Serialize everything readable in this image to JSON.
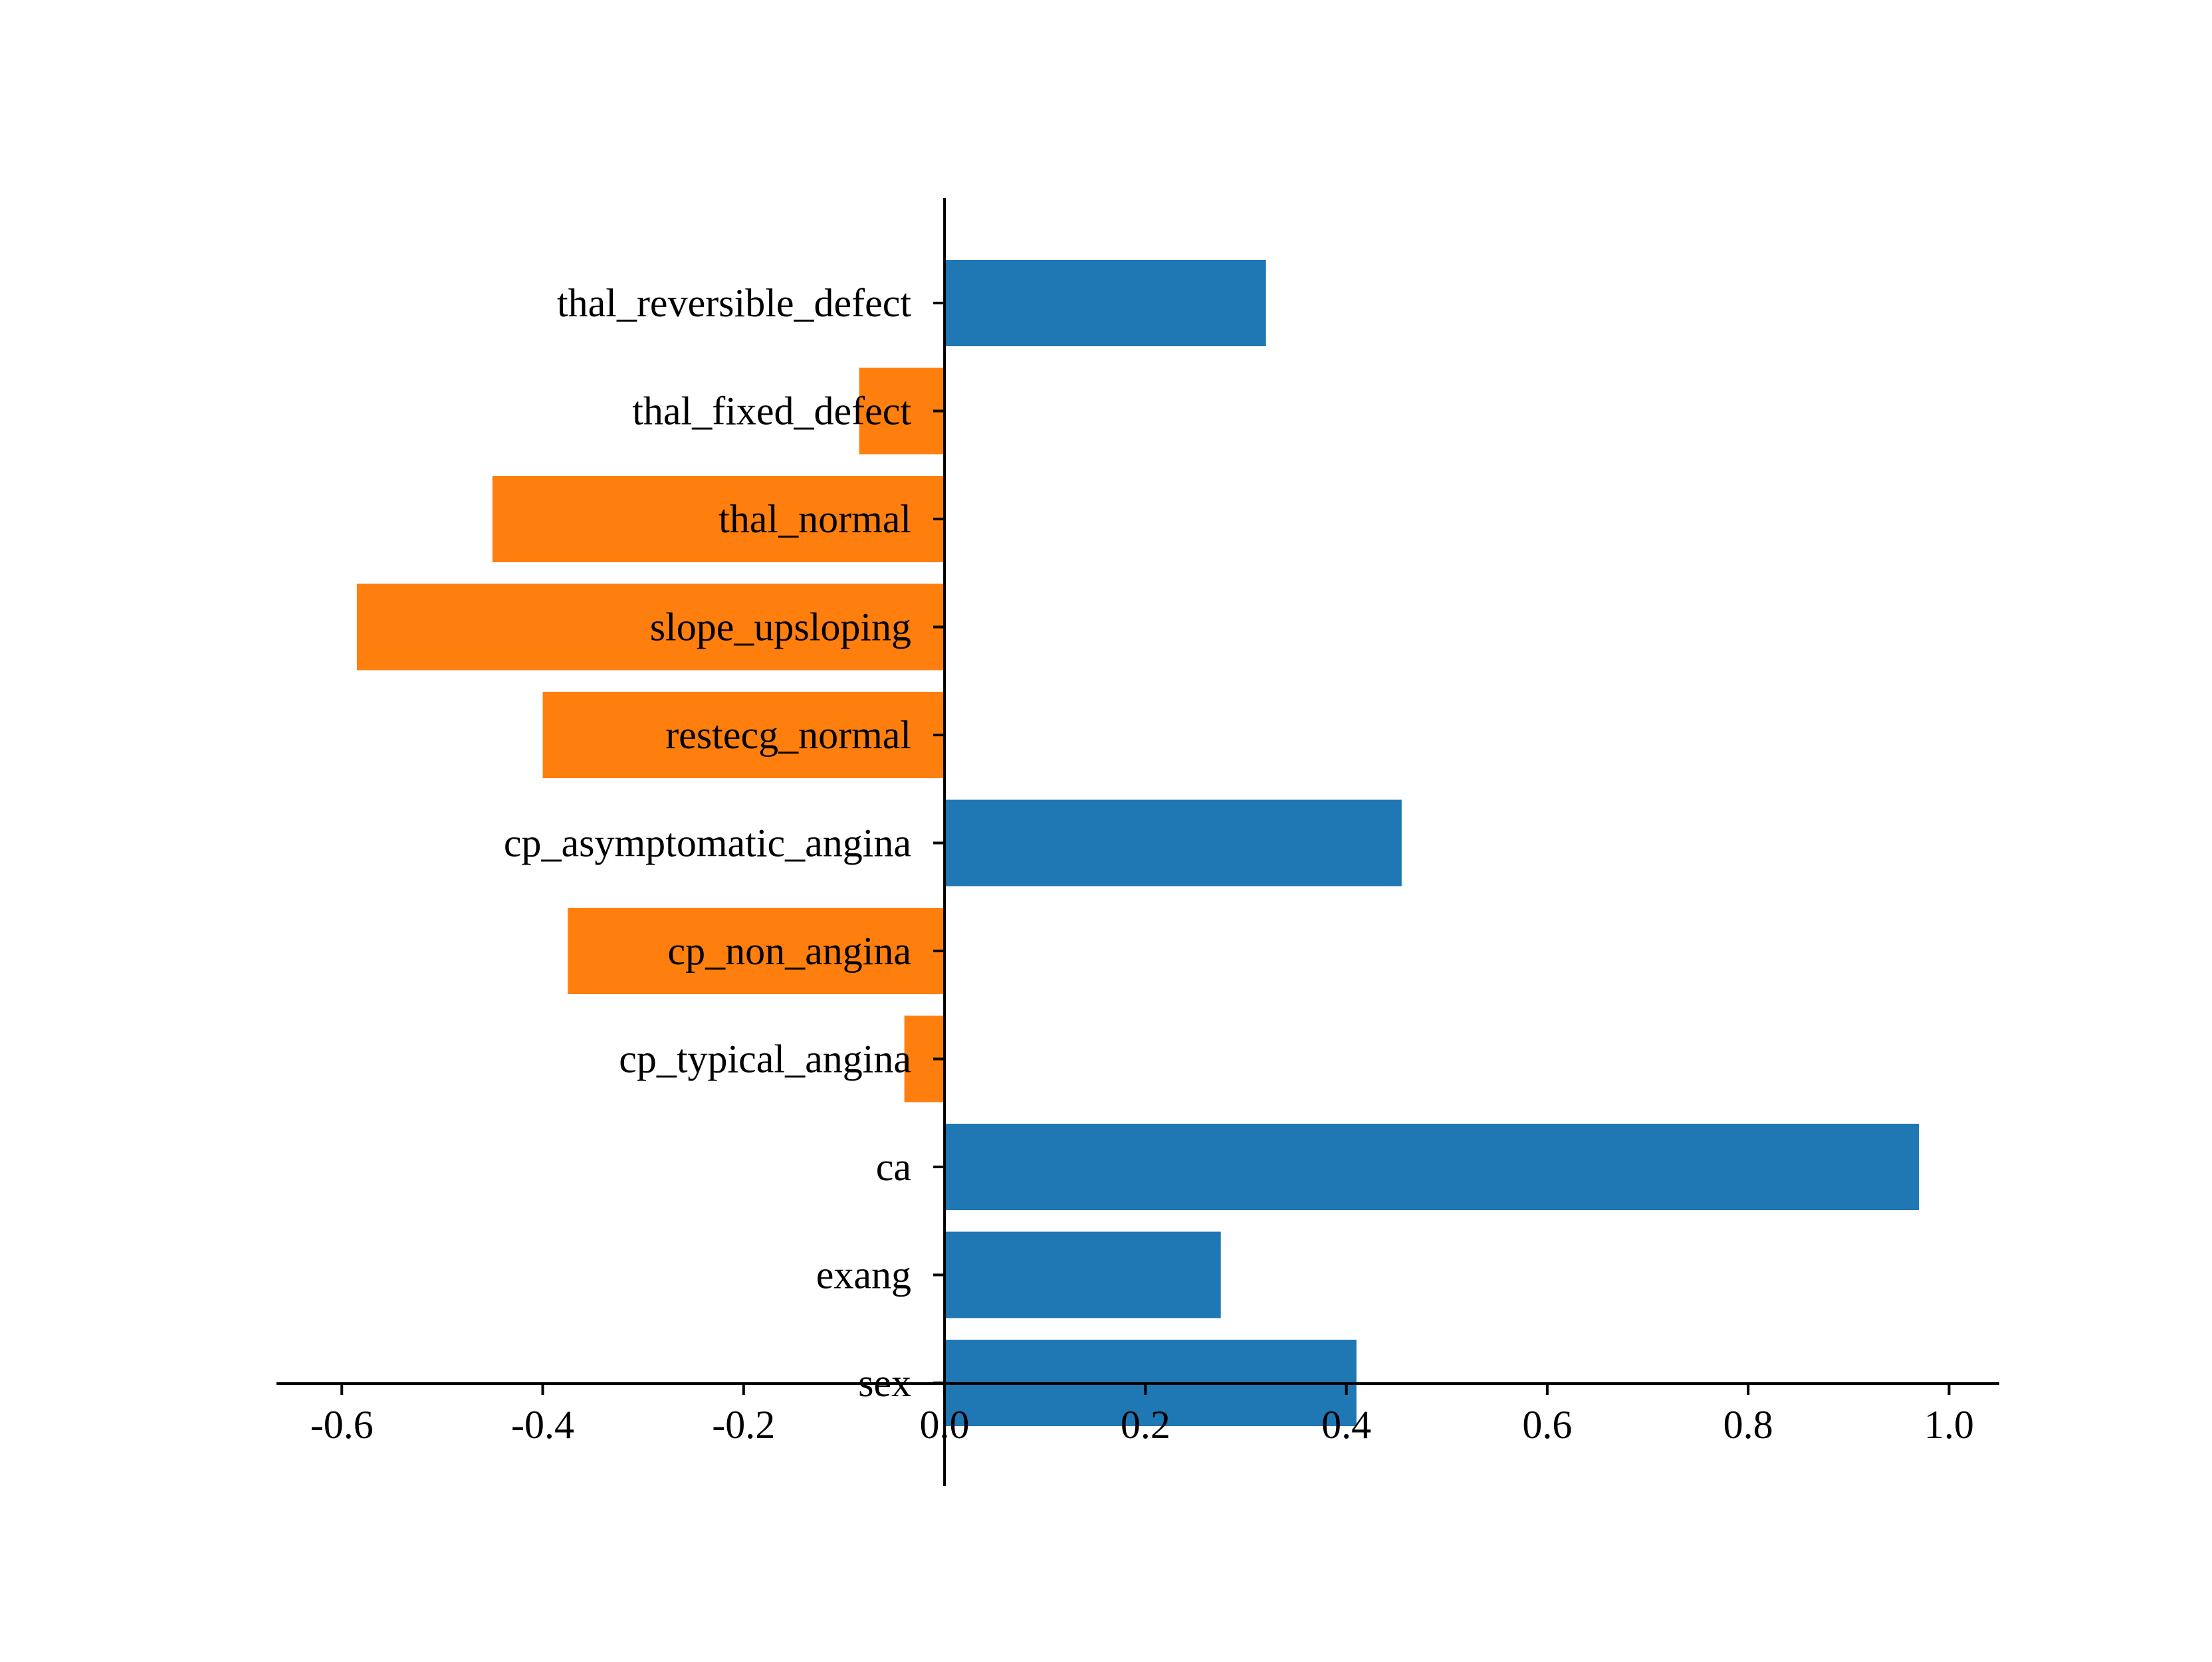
{
  "chart_data": {
    "type": "bar",
    "orientation": "horizontal",
    "categories": [
      "sex",
      "exang",
      "ca",
      "cp_typical_angina",
      "cp_non_angina",
      "cp_asymptomatic_angina",
      "restecg_normal",
      "slope_upsloping",
      "thal_normal",
      "thal_fixed_defect",
      "thal_reversible_defect"
    ],
    "values": [
      0.41,
      0.275,
      0.97,
      -0.04,
      -0.375,
      0.455,
      -0.4,
      -0.585,
      -0.45,
      -0.085,
      0.32
    ],
    "colors": {
      "positive": "#1f77b4",
      "negative": "#ff7f0e"
    },
    "xlim": [
      -0.665,
      1.05
    ],
    "x_ticks": [
      -0.6,
      -0.4,
      -0.2,
      0.0,
      0.2,
      0.4,
      0.6,
      0.8,
      1.0
    ],
    "x_tick_labels": [
      "-0.6",
      "-0.4",
      "-0.2",
      "0.0",
      "0.2",
      "0.4",
      "0.6",
      "0.8",
      "1.0"
    ],
    "title": "",
    "xlabel": "",
    "ylabel": "",
    "grid": false,
    "legend": "none"
  }
}
